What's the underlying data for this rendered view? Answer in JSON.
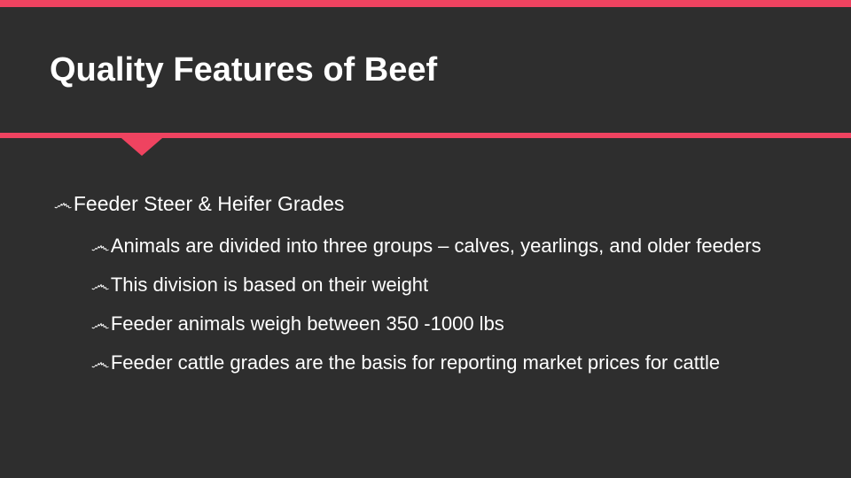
{
  "colors": {
    "accent": "#ef4360",
    "background": "#2e2e2e",
    "text": "#ffffff"
  },
  "bullet_glyph": "෴",
  "slide": {
    "title": "Quality Features of Beef",
    "bullets": [
      {
        "text": "Feeder Steer & Heifer Grades",
        "children": [
          {
            "text": "Animals are divided into three groups – calves, yearlings, and older feeders"
          },
          {
            "text": "This division is based on their weight"
          },
          {
            "text": "Feeder animals weigh between 350 -1000 lbs"
          },
          {
            "text": "Feeder cattle grades are the basis for reporting market prices for cattle"
          }
        ]
      }
    ]
  }
}
